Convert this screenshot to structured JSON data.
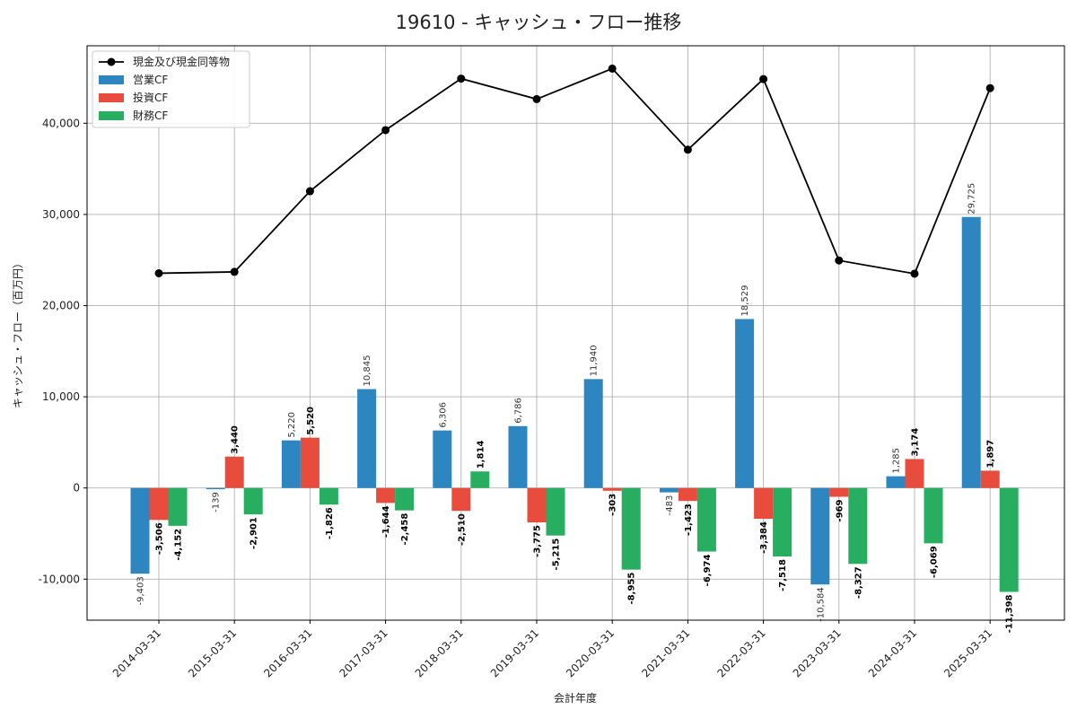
{
  "chart_data": {
    "type": "bar",
    "title": "19610 - キャッシュ・フロー推移",
    "xlabel": "会計年度",
    "ylabel": "キャッシュ・フロー（百万円）",
    "categories": [
      "2014-03-31",
      "2015-03-31",
      "2016-03-31",
      "2017-03-31",
      "2018-03-31",
      "2019-03-31",
      "2020-03-31",
      "2021-03-31",
      "2022-03-31",
      "2023-03-31",
      "2024-03-31",
      "2025-03-31"
    ],
    "ylim": [
      -14500,
      48500
    ],
    "yticks": [
      -10000,
      0,
      10000,
      20000,
      30000,
      40000
    ],
    "ytick_labels": [
      "-10,000",
      "0",
      "10,000",
      "20,000",
      "30,000",
      "40,000"
    ],
    "grid": true,
    "legend_position": "top-left",
    "series": [
      {
        "name": "営業CF",
        "kind": "bar",
        "color": "#2e86c1",
        "values": [
          -9403,
          -139,
          5220,
          10845,
          6306,
          6786,
          11940,
          -483,
          18529,
          -10584,
          1285,
          29725
        ],
        "labels": [
          "-9,403",
          "-139",
          "5,220",
          "10,845",
          "6,306",
          "6,786",
          "11,940",
          "-483",
          "18,529",
          "-10,584",
          "1,285",
          "29,725"
        ]
      },
      {
        "name": "投資CF",
        "kind": "bar",
        "color": "#e74c3c",
        "values": [
          -3506,
          3440,
          5520,
          -1644,
          -2510,
          -3775,
          -303,
          -1423,
          -3384,
          -969,
          3174,
          1897
        ],
        "labels": [
          "-3,506",
          "3,440",
          "5,520",
          "-1,644",
          "-2,510",
          "-3,775",
          "-303",
          "-1,423",
          "-3,384",
          "-969",
          "3,174",
          "1,897"
        ]
      },
      {
        "name": "財務CF",
        "kind": "bar",
        "color": "#27ae60",
        "values": [
          -4152,
          -2901,
          -1826,
          -2458,
          1814,
          -5215,
          -8955,
          -6974,
          -7518,
          -8327,
          -6069,
          -11398
        ],
        "labels": [
          "-4,152",
          "-2,901",
          "-1,826",
          "-2,458",
          "1,814",
          "-5,215",
          "-8,955",
          "-6,974",
          "-7,518",
          "-8,327",
          "-6,069",
          "-11,398"
        ]
      },
      {
        "name": "現金及び現金同等物",
        "kind": "line",
        "color": "#000000",
        "values": [
          23550,
          23700,
          32550,
          39250,
          44900,
          42650,
          46000,
          37100,
          44850,
          24950,
          23500,
          43850
        ]
      }
    ]
  }
}
